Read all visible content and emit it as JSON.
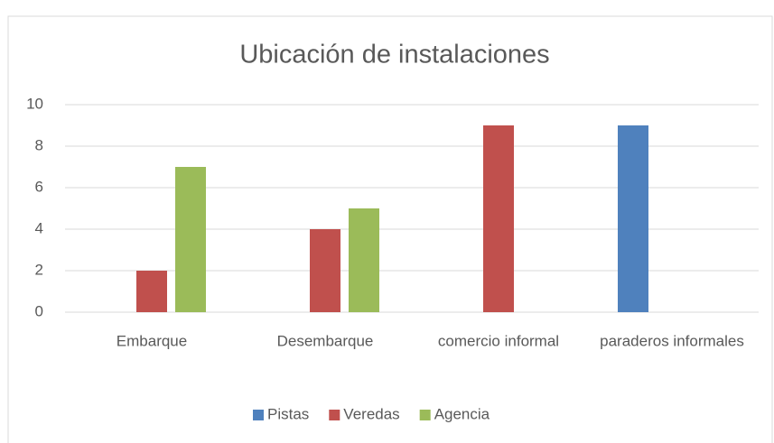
{
  "chart_data": {
    "type": "bar",
    "title": "Ubicación de instalaciones",
    "categories": [
      "Embarque",
      "Desembarque",
      "comercio informal",
      "paraderos informales"
    ],
    "series": [
      {
        "name": "Pistas",
        "color": "#4f81bd",
        "values": [
          0,
          0,
          0,
          9
        ]
      },
      {
        "name": "Veredas",
        "color": "#c0504d",
        "values": [
          2,
          4,
          9,
          0
        ]
      },
      {
        "name": "Agencia",
        "color": "#9bbb59",
        "values": [
          7,
          5,
          0,
          0
        ]
      }
    ],
    "ylim": [
      0,
      10
    ],
    "yticks": [
      0,
      2,
      4,
      6,
      8,
      10
    ],
    "grid": true,
    "legend": "bottom"
  }
}
